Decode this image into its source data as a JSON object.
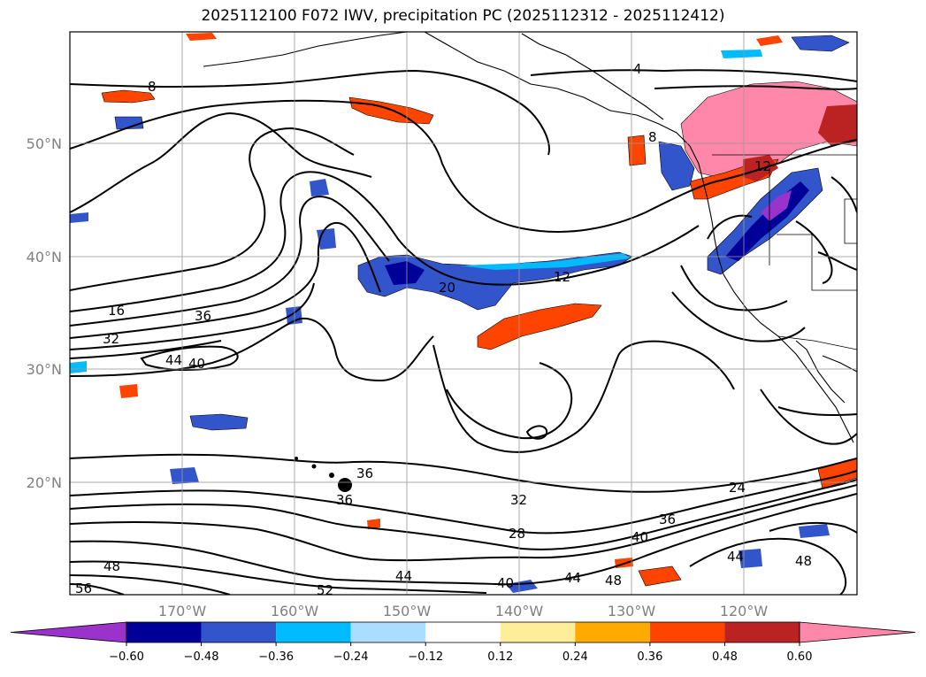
{
  "title": "2025112100 F072 IWV, precipitation PC (2025112312 - 2025112412)",
  "map": {
    "lon_labels": [
      "170°W",
      "160°W",
      "150°W",
      "140°W",
      "130°W",
      "120°W"
    ],
    "lat_labels": [
      "50°N",
      "40°N",
      "30°N",
      "20°N"
    ],
    "grid": true
  },
  "contour_labels": [
    {
      "text": "8"
    },
    {
      "text": "4"
    },
    {
      "text": "12"
    },
    {
      "text": "12"
    },
    {
      "text": "20"
    },
    {
      "text": "16"
    },
    {
      "text": "36"
    },
    {
      "text": "32"
    },
    {
      "text": "44"
    },
    {
      "text": "40"
    },
    {
      "text": "36"
    },
    {
      "text": "36"
    },
    {
      "text": "32"
    },
    {
      "text": "28"
    },
    {
      "text": "24"
    },
    {
      "text": "36"
    },
    {
      "text": "40"
    },
    {
      "text": "48"
    },
    {
      "text": "44"
    },
    {
      "text": "52"
    },
    {
      "text": "56"
    },
    {
      "text": "40"
    },
    {
      "text": "44"
    },
    {
      "text": "48"
    },
    {
      "text": "44"
    },
    {
      "text": "48"
    },
    {
      "text": "8"
    }
  ],
  "colorbar": {
    "ticks": [
      "−0.60",
      "−0.48",
      "−0.36",
      "−0.24",
      "−0.12",
      "0.12",
      "0.24",
      "0.36",
      "0.48",
      "0.60"
    ],
    "colors": [
      "#9933cc",
      "#000099",
      "#3355cc",
      "#00bbff",
      "#aaddff",
      "#ffffff",
      "#ffee99",
      "#ffaa00",
      "#ff4400",
      "#bb2222",
      "#ff88aa"
    ]
  }
}
